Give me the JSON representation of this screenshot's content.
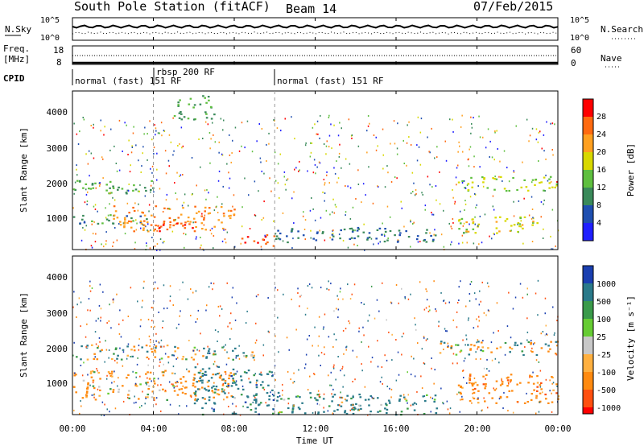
{
  "header": {
    "station": "South Pole Station (fitACF)",
    "beam": "Beam 14",
    "date": "07/Feb/2015"
  },
  "top_panels": {
    "nsky_label": "N.Sky",
    "nsky_ticks": [
      "10^5",
      "10^0"
    ],
    "nsearch_label": "N.Search",
    "nsearch_ticks": [
      "10^5",
      "10^0"
    ],
    "freq_label": "Freq.",
    "freq_unit": "[MHz]",
    "freq_ticks": [
      "18",
      "8"
    ],
    "nave_label": "Nave",
    "nave_ticks": [
      "60",
      "0"
    ],
    "cpid_label": "CPID",
    "cpid_segments": [
      {
        "label": "normal (fast) 151 RF",
        "start_hour": 0,
        "end_hour": 4
      },
      {
        "label": "rbsp 200 RF",
        "start_hour": 4,
        "end_hour": 10
      },
      {
        "label": "normal (fast) 151 RF",
        "start_hour": 10,
        "end_hour": 24
      }
    ]
  },
  "x_axis": {
    "label": "Time UT",
    "ticks": [
      "00:00",
      "04:00",
      "08:00",
      "12:00",
      "16:00",
      "20:00",
      "00:00"
    ],
    "tick_hours": [
      0,
      4,
      8,
      12,
      16,
      20,
      24
    ]
  },
  "power_panel": {
    "ylabel": "Slant Range [km]",
    "yticks": [
      "1000",
      "2000",
      "3000",
      "4000"
    ],
    "colorbar_label": "Power [dB]",
    "colorbar_ticks": [
      "4",
      "8",
      "12",
      "16",
      "20",
      "24",
      "28"
    ],
    "colors": [
      "#1f1fff",
      "#1f4fb0",
      "#3a8a5a",
      "#5fbf3f",
      "#d8d800",
      "#ffa020",
      "#ff6a10",
      "#ff0000"
    ]
  },
  "velocity_panel": {
    "ylabel": "Slant Range [km]",
    "yticks": [
      "1000",
      "2000",
      "3000",
      "4000"
    ],
    "colorbar_label": "Velocity [m s⁻¹]",
    "colorbar_ticks": [
      "1000",
      "500",
      "100",
      "25",
      "-25",
      "-100",
      "-500",
      "-1000"
    ],
    "colors": [
      "#1a3fb0",
      "#2a7a8a",
      "#3a9a4a",
      "#66cc33",
      "#c8c8c8",
      "#ffb040",
      "#ff8a10",
      "#ff5010",
      "#ff0000"
    ]
  },
  "chart_data": [
    {
      "type": "heatmap",
      "title": "Power [dB]",
      "xlabel": "Time UT",
      "ylabel": "Slant Range [km]",
      "xlim": [
        0,
        24
      ],
      "ylim": [
        180,
        4500
      ],
      "zlim": [
        0,
        30
      ],
      "echo_bands": [
        {
          "hours": [
            0,
            4
          ],
          "range_km": [
            1700,
            2100
          ],
          "power_db": 12
        },
        {
          "hours": [
            0,
            4
          ],
          "range_km": [
            900,
            1150
          ],
          "power_db": 10
        },
        {
          "hours": [
            2,
            8
          ],
          "range_km": [
            700,
            1400
          ],
          "power_db": 24
        },
        {
          "hours": [
            4,
            6
          ],
          "range_km": [
            700,
            1000
          ],
          "power_db": 28
        },
        {
          "hours": [
            8,
            10
          ],
          "range_km": [
            300,
            600
          ],
          "power_db": 28
        },
        {
          "hours": [
            5,
            7
          ],
          "range_km": [
            3700,
            4400
          ],
          "power_db": 12
        },
        {
          "hours": [
            10,
            18
          ],
          "range_km": [
            400,
            800
          ],
          "power_db": 8
        },
        {
          "hours": [
            19,
            24
          ],
          "range_km": [
            1800,
            2200
          ],
          "power_db": 16
        },
        {
          "hours": [
            19,
            23
          ],
          "range_km": [
            600,
            1100
          ],
          "power_db": 18
        }
      ]
    },
    {
      "type": "heatmap",
      "title": "Velocity [m s-1]",
      "xlabel": "Time UT",
      "ylabel": "Slant Range [km]",
      "xlim": [
        0,
        24
      ],
      "ylim": [
        180,
        4500
      ],
      "zlim": [
        -1000,
        1000
      ],
      "echo_bands": [
        {
          "hours": [
            0,
            9
          ],
          "range_km": [
            1700,
            2100
          ],
          "velocity": 0
        },
        {
          "hours": [
            0,
            8
          ],
          "range_km": [
            600,
            1400
          ],
          "velocity": -200
        },
        {
          "hours": [
            6,
            10
          ],
          "range_km": [
            200,
            1500
          ],
          "velocity": 300
        },
        {
          "hours": [
            10,
            18
          ],
          "range_km": [
            200,
            800
          ],
          "velocity": 200
        },
        {
          "hours": [
            18,
            24
          ],
          "range_km": [
            1800,
            2200
          ],
          "velocity": 0
        },
        {
          "hours": [
            19,
            24
          ],
          "range_km": [
            500,
            1300
          ],
          "velocity": -300
        }
      ]
    }
  ]
}
